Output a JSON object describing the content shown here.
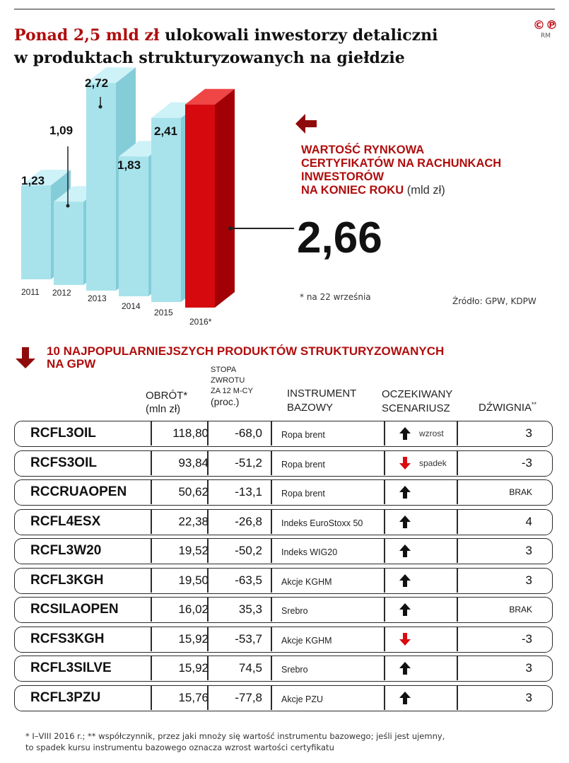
{
  "header": {
    "title_red": "Ponad 2,5 mld zł",
    "title_rest": " ulokowali inwestorzy detaliczni",
    "title_line2": "w produktach strukturyzowanych na giełdzie",
    "logo_symbols": "©℗",
    "logo_text": "RM"
  },
  "legend": {
    "line1": "WARTOŚĆ RYNKOWA",
    "line2": "CERTYFIKATÓW NA RACHUNKACH",
    "line3": "INWESTORÓW",
    "line4": "NA KONIEC ROKU",
    "unit": " (mld zł)",
    "big_value": "2,66",
    "footnote_date": "* na 22 września",
    "source": "Źródło: GPW, KDPW"
  },
  "chart_data": {
    "type": "bar",
    "categories": [
      "2011",
      "2012",
      "2013",
      "2014",
      "2015",
      "2016*"
    ],
    "values": [
      1.23,
      1.09,
      2.72,
      1.83,
      2.41,
      2.66
    ],
    "value_labels": [
      "1,23",
      "1,09",
      "2,72",
      "1,83",
      "2,41",
      "2,66"
    ],
    "ylabel": "mld zł",
    "colors": {
      "bar_face": "#a8e3ec",
      "bar_side": "#85ccd9",
      "bar_top": "#cdf2f7",
      "highlight_face": "#d6090f",
      "highlight_side": "#a30006",
      "highlight_top": "#f04545"
    },
    "highlight_index": 5,
    "grid": false
  },
  "table": {
    "title_line1": "10 NAJPOPULARNIEJSZYCH PRODUKTÓW STRUKTURYZOWANYCH",
    "title_line2": "NA GPW",
    "headers": {
      "turnover_1": "OBRÓT*",
      "turnover_2": "(mln zł)",
      "return_1": "STOPA",
      "return_2": "ZWROTU",
      "return_3": "ZA 12 M-CY",
      "return_4": "(proc.)",
      "instrument_1": "INSTRUMENT",
      "instrument_2": "BAZOWY",
      "scenario_1": "OCZEKIWANY",
      "scenario_2": "SCENARIUSZ",
      "leverage": "DŹWIGNIA",
      "leverage_mark": "**"
    },
    "rows": [
      {
        "code": "RCFL3OIL",
        "turnover": "118,80",
        "return": "-68,0",
        "instrument": "Ropa brent",
        "scenario": "up",
        "scenario_label": "wzrost",
        "leverage": "3"
      },
      {
        "code": "RCFS3OIL",
        "turnover": "93,84",
        "return": "-51,2",
        "instrument": "Ropa brent",
        "scenario": "down",
        "scenario_label": "spadek",
        "leverage": "-3"
      },
      {
        "code": "RCCRUAOPEN",
        "turnover": "50,62",
        "return": "-13,1",
        "instrument": "Ropa brent",
        "scenario": "up",
        "scenario_label": "",
        "leverage": "BRAK"
      },
      {
        "code": "RCFL4ESX",
        "turnover": "22,38",
        "return": "-26,8",
        "instrument": "Indeks EuroStoxx 50",
        "scenario": "up",
        "scenario_label": "",
        "leverage": "4"
      },
      {
        "code": "RCFL3W20",
        "turnover": "19,52",
        "return": "-50,2",
        "instrument": "Indeks WIG20",
        "scenario": "up",
        "scenario_label": "",
        "leverage": "3"
      },
      {
        "code": "RCFL3KGH",
        "turnover": "19,50",
        "return": "-63,5",
        "instrument": "Akcje KGHM",
        "scenario": "up",
        "scenario_label": "",
        "leverage": "3"
      },
      {
        "code": "RCSILAOPEN",
        "turnover": "16,02",
        "return": "35,3",
        "instrument": "Srebro",
        "scenario": "up",
        "scenario_label": "",
        "leverage": "BRAK"
      },
      {
        "code": "RCFS3KGH",
        "turnover": "15,92",
        "return": "-53,7",
        "instrument": "Akcje KGHM",
        "scenario": "down",
        "scenario_label": "",
        "leverage": "-3"
      },
      {
        "code": "RCFL3SILVE",
        "turnover": "15,92",
        "return": "74,5",
        "instrument": "Srebro",
        "scenario": "up",
        "scenario_label": "",
        "leverage": "3"
      },
      {
        "code": "RCFL3PZU",
        "turnover": "15,76",
        "return": "-77,8",
        "instrument": "Akcje PZU",
        "scenario": "up",
        "scenario_label": "",
        "leverage": "3"
      }
    ],
    "footnote_line1": "* I–VIII 2016 r.; ** współczynnik, przez jaki mnoży się wartość instrumentu bazowego; jeśli jest ujemny,",
    "footnote_line2": "to spadek kursu instrumentu bazowego oznacza wzrost wartości certyfikatu"
  }
}
